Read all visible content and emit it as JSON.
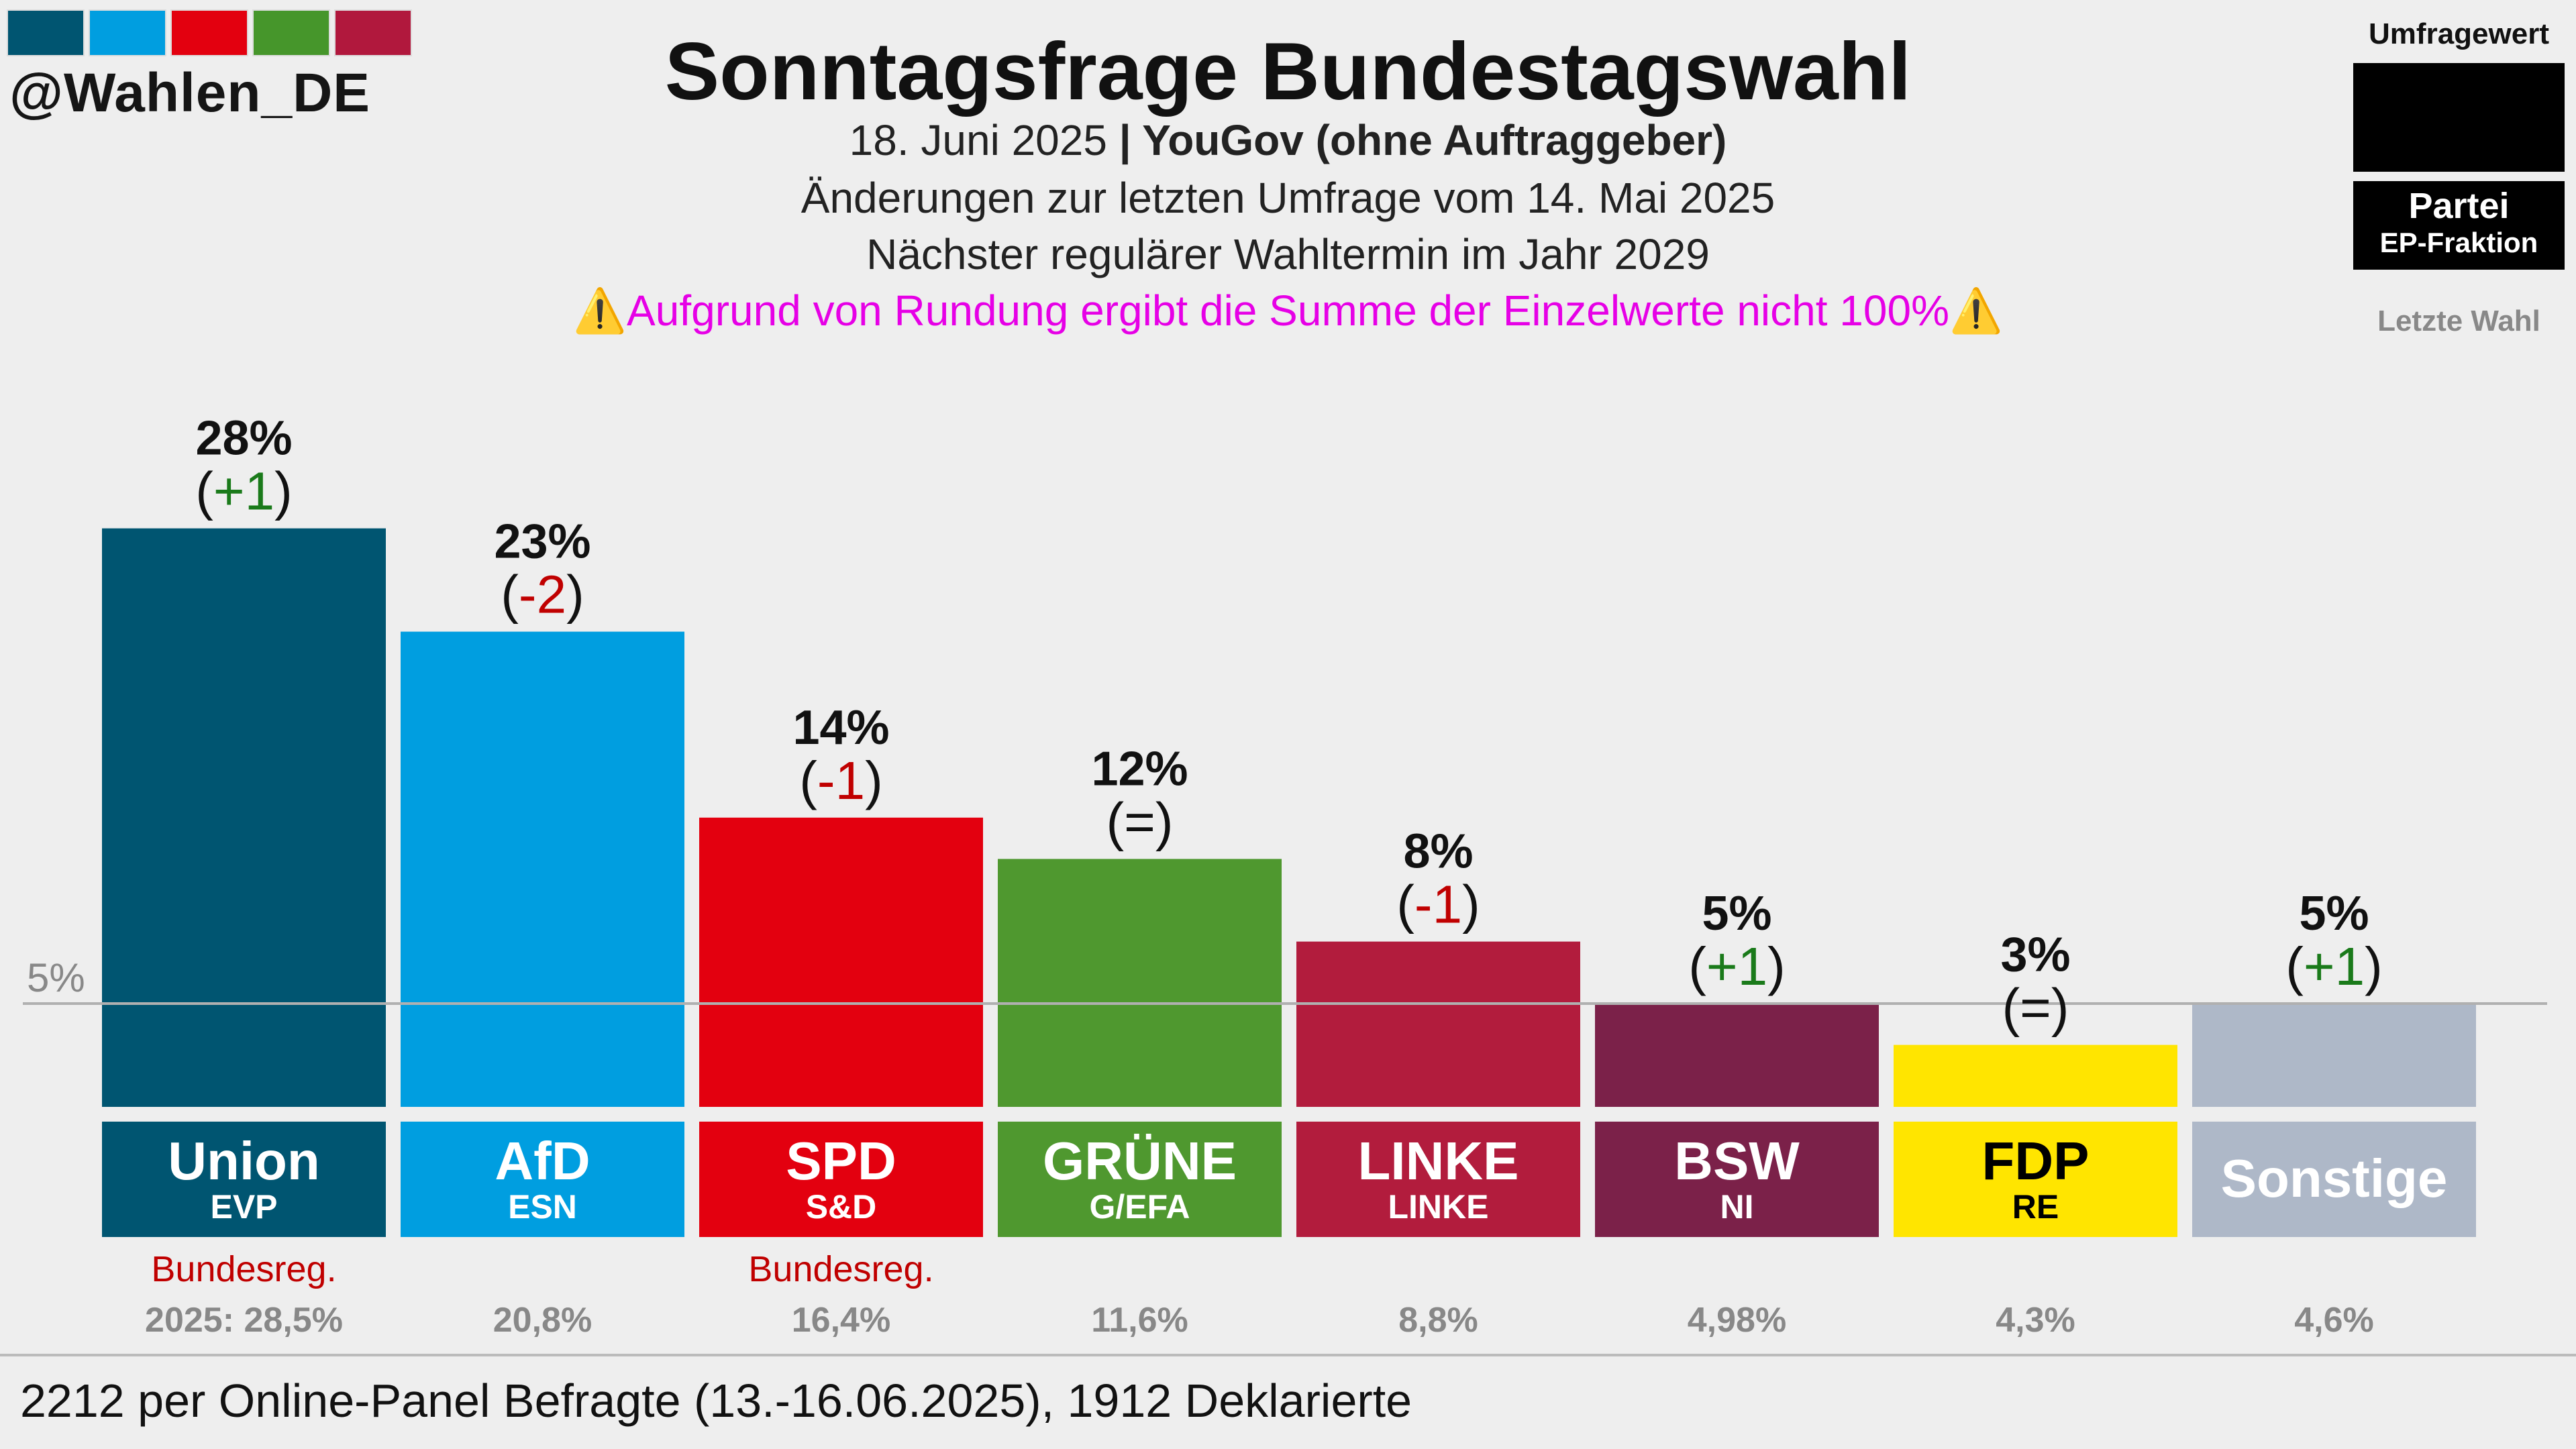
{
  "header": {
    "handle": "@Wahlen_DE",
    "logo_colors": [
      "#005571",
      "#009ee0",
      "#e3000f",
      "#46962b",
      "#b1183d"
    ],
    "title": "Sonntagsfrage Bundestagswahl",
    "date": "18. Juni 2025",
    "separator": " | ",
    "pollster": "YouGov (ohne Auftraggeber)",
    "changes_note": "Änderungen zur letzten Umfrage vom 14. Mai 2025",
    "next_election": "Nächster regulärer Wahltermin im Jahr 2029",
    "warning_icon": "⚠️",
    "rounding_note": "Aufgrund von Rundung ergibt die Summe der Einzelwerte nicht 100%"
  },
  "legend": {
    "title": "Umfragewert",
    "party": "Partei",
    "faction": "EP-Fraktion",
    "last_election": "Letzte Wahl"
  },
  "chart_data": {
    "type": "bar",
    "unit": "%",
    "categories": [
      "Union",
      "AfD",
      "SPD",
      "GRÜNE",
      "LINKE",
      "BSW",
      "FDP",
      "Sonstige"
    ],
    "factions": [
      "EVP",
      "ESN",
      "S&D",
      "G/EFA",
      "LINKE",
      "NI",
      "RE",
      ""
    ],
    "values": [
      28,
      23,
      14,
      12,
      8,
      5,
      3,
      5
    ],
    "changes": [
      "+1",
      "-2",
      "-1",
      "=",
      "-1",
      "+1",
      "=",
      "+1"
    ],
    "colors": [
      "#005571",
      "#009ee0",
      "#e3000f",
      "#4f982f",
      "#b21c3d",
      "#7b2149",
      "#ffe500",
      "#aeb8c8"
    ],
    "label_text_colors": [
      "#ffffff",
      "#ffffff",
      "#ffffff",
      "#ffffff",
      "#ffffff",
      "#ffffff",
      "#000000",
      "#ffffff"
    ],
    "government": [
      "Bundesreg.",
      "",
      "Bundesreg.",
      "",
      "",
      "",
      "",
      ""
    ],
    "last_election": [
      "2025: 28,5%",
      "20,8%",
      "16,4%",
      "11,6%",
      "8,8%",
      "4,98%",
      "4,3%",
      "4,6%"
    ],
    "threshold": 5,
    "threshold_label": "5%",
    "positive_color": "#1a7a1a",
    "negative_color": "#c00000",
    "government_color": "#c00000"
  },
  "footer": {
    "sample": "2212 per Online-Panel Befragte (13.-16.06.2025), 1912 Deklarierte"
  }
}
